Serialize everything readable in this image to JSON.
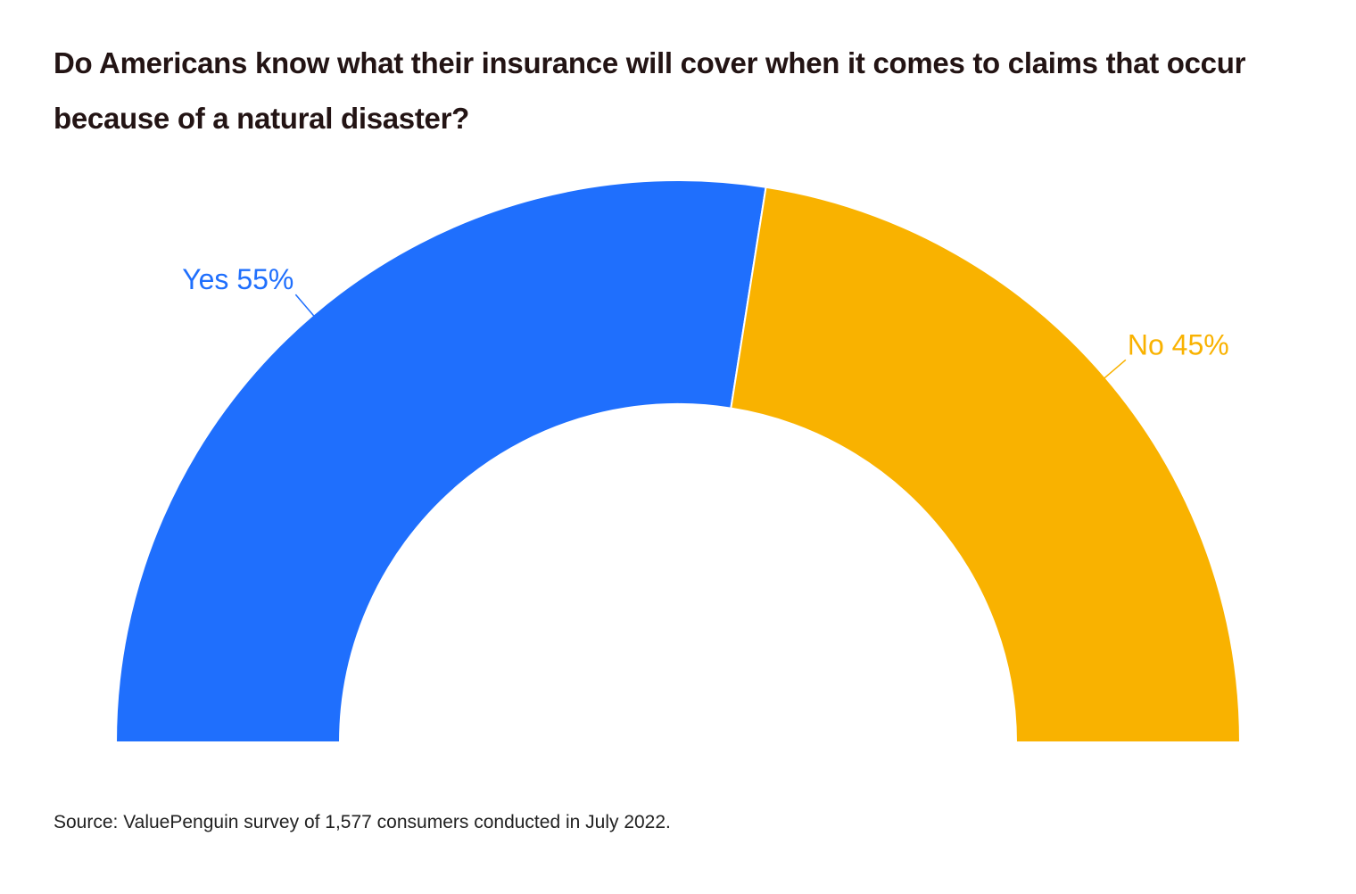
{
  "chart_data": {
    "type": "pie",
    "variant": "half-donut",
    "title": "Do Americans know what their insurance will cover when it comes to claims that occur because of a natural disaster?",
    "slices": [
      {
        "label": "Yes 55%",
        "name": "Yes",
        "value": 55,
        "color": "#1f6ffd"
      },
      {
        "label": "No 45%",
        "name": "No",
        "value": 45,
        "color": "#f9b200"
      }
    ],
    "source": "Source: ValuePenguin survey of 1,577 consumers conducted in July 2022."
  }
}
